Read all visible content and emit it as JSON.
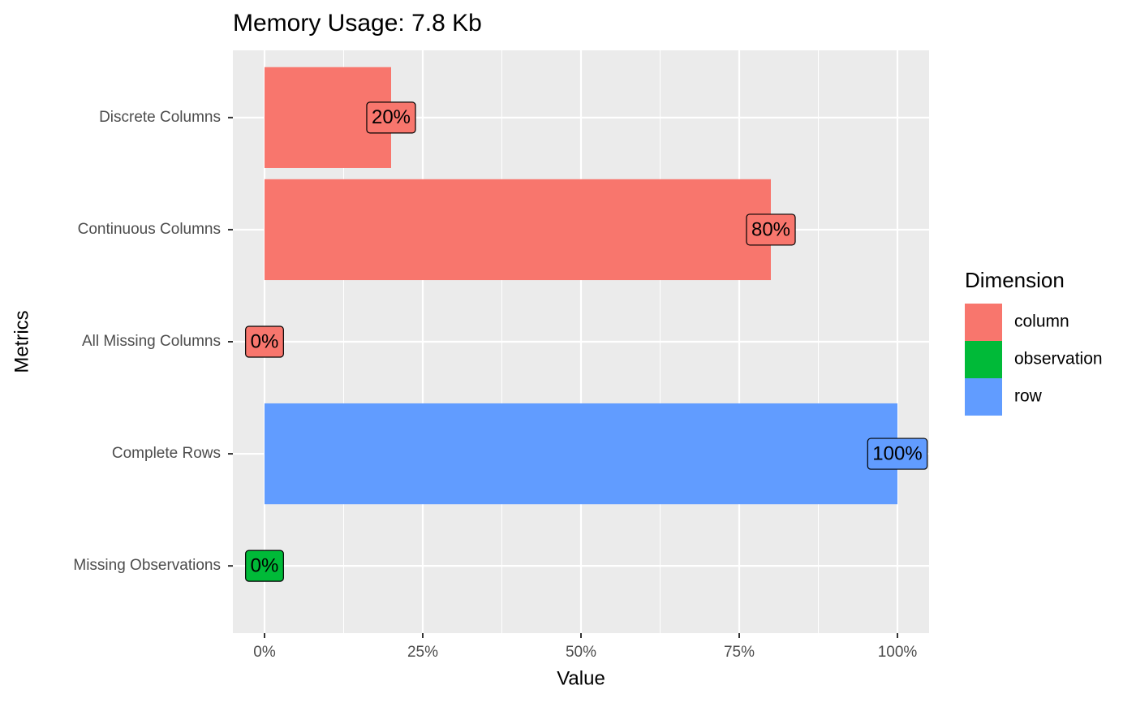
{
  "chart_data": {
    "type": "bar",
    "orientation": "horizontal",
    "title": "Memory Usage: 7.8 Kb",
    "x_label": "Value",
    "y_label": "Metrics",
    "categories": [
      "Discrete Columns",
      "Continuous Columns",
      "All Missing Columns",
      "Complete Rows",
      "Missing Observations"
    ],
    "legend_title": "Dimension",
    "series": [
      {
        "name": "column",
        "color": "#F8766D",
        "values": [
          20,
          80,
          0,
          null,
          null
        ],
        "value_labels": [
          "20%",
          "80%",
          "0%",
          null,
          null
        ]
      },
      {
        "name": "observation",
        "color": "#00BA38",
        "values": [
          null,
          null,
          null,
          null,
          0
        ],
        "value_labels": [
          null,
          null,
          null,
          null,
          "0%"
        ]
      },
      {
        "name": "row",
        "color": "#619CFF",
        "values": [
          null,
          null,
          null,
          100,
          null
        ],
        "value_labels": [
          null,
          null,
          null,
          "100%",
          null
        ]
      }
    ],
    "xlim": [
      -5,
      105
    ],
    "xticks": [
      {
        "value": 0,
        "label": "0%"
      },
      {
        "value": 25,
        "label": "25%"
      },
      {
        "value": 50,
        "label": "50%"
      },
      {
        "value": 75,
        "label": "75%"
      },
      {
        "value": 100,
        "label": "100%"
      }
    ],
    "grid": true,
    "minor_grid": true
  }
}
